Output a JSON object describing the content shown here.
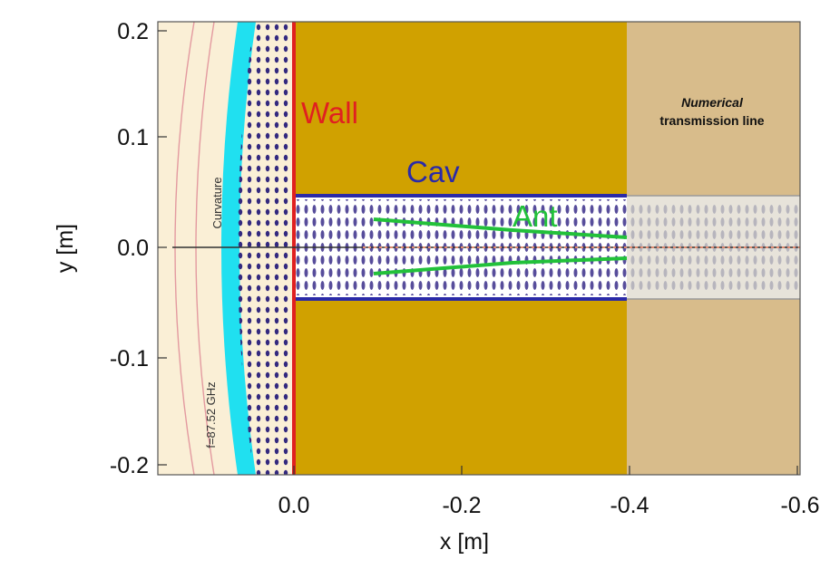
{
  "axes": {
    "xlabel": "x [m]",
    "ylabel": "y [m]",
    "x_ticks": [
      "0.0",
      "-0.2",
      "-0.4",
      "-0.6"
    ],
    "y_ticks": [
      "0.2",
      "0.1",
      "0.0",
      "-0.1",
      "-0.2"
    ]
  },
  "labels": {
    "wall": "Wall",
    "cav": "Cav",
    "ant": "Ant",
    "curvature": "Curvature",
    "frequency": "f=87.52 GHz",
    "ntl_line1": "Numerical",
    "ntl_line2": "transmission line"
  },
  "colors": {
    "plasma_bg": "#faefd6",
    "wall_fill": "#d0a100",
    "ntl_fill": "#d8bc8b",
    "wall_line": "#e02020",
    "cav_line": "#2a2aa8",
    "ant_line": "#22c13a",
    "cyan_layer": "#20e0f0"
  }
}
